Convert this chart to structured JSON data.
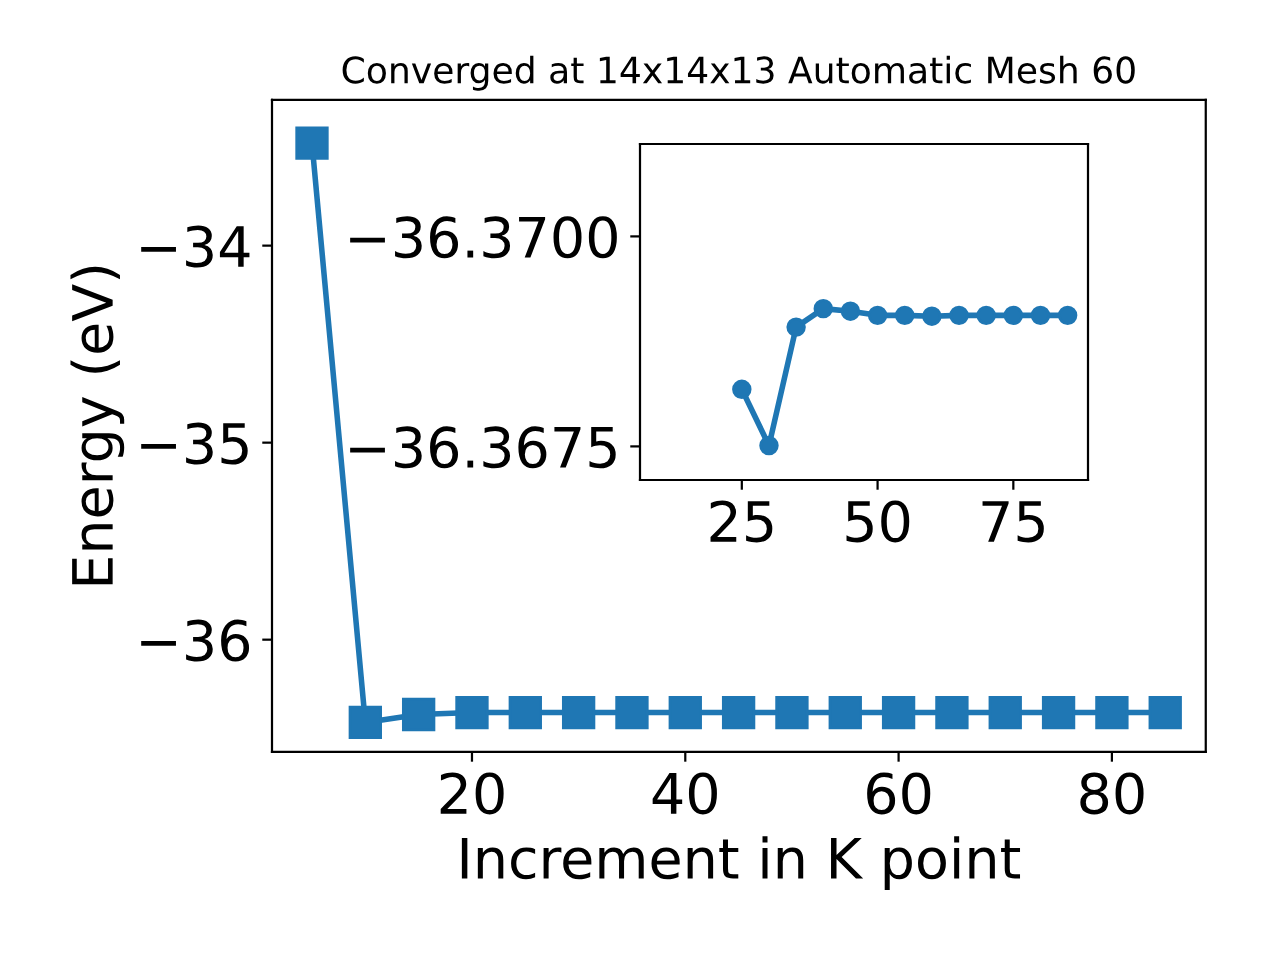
{
  "chart_data": [
    {
      "type": "line",
      "title": "Converged at 14x14x13 Automatic Mesh 60",
      "xlabel": "Increment in K point",
      "ylabel": "Energy (eV)",
      "x": [
        5,
        10,
        15,
        20,
        25,
        30,
        35,
        40,
        45,
        50,
        55,
        60,
        65,
        70,
        75,
        80,
        85
      ],
      "series": [
        {
          "color": "#1f77b4",
          "values": [
            -33.48,
            -36.42,
            -36.38,
            -36.37,
            -36.37,
            -36.37,
            -36.37,
            -36.37,
            -36.37,
            -36.37,
            -36.37,
            -36.37,
            -36.37,
            -36.37,
            -36.37,
            -36.37,
            -36.37
          ]
        }
      ],
      "xlim": [
        1.25,
        88.8
      ],
      "ylim": [
        -36.57,
        -33.26
      ],
      "xticks": [
        20,
        40,
        60,
        80
      ],
      "yticks": [
        -34,
        -35,
        -36
      ],
      "marker": "square",
      "line_style": "solid",
      "grid": false,
      "legend": false
    },
    {
      "type": "line",
      "x": [
        25,
        30,
        35,
        40,
        45,
        50,
        55,
        60,
        65,
        70,
        75,
        80,
        85
      ],
      "series": [
        {
          "color": "#1f77b4",
          "values": [
            -36.36818,
            -36.36751,
            -36.36892,
            -36.36914,
            -36.36911,
            -36.36906,
            -36.36906,
            -36.36905,
            -36.36906,
            -36.36906,
            -36.36906,
            -36.36906,
            -36.36906
          ]
        }
      ],
      "xlim": [
        6.25,
        88.75
      ],
      "ylim": [
        -36.3671,
        -36.3711
      ],
      "xticks": [
        25,
        50,
        75
      ],
      "yticks": [
        {
          "value": -36.37,
          "label": "−36.3700"
        },
        {
          "value": -36.3675,
          "label": "−36.3675"
        }
      ],
      "marker": "circle",
      "line_style": "solid",
      "grid": false,
      "legend": false
    }
  ]
}
